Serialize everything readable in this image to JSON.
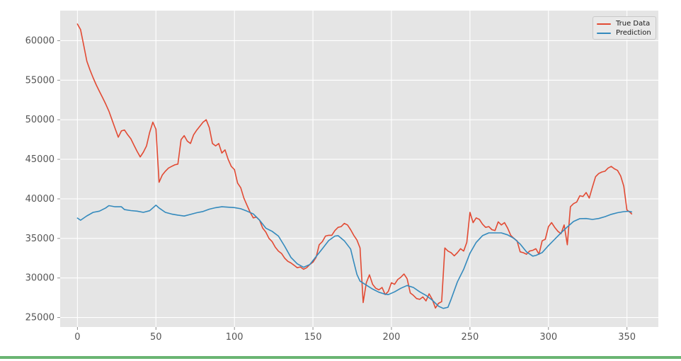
{
  "figure": {
    "background": "#ffffff",
    "plot_background": "#e5e5e5",
    "grid_color": "#ffffff",
    "tick_color": "#555555",
    "tick_mark_color": "#8f8f8f",
    "legend_background": "#e9e9e9",
    "legend_border": "#c9c9c9",
    "accent_bar_color": "#6ab572"
  },
  "chart_data": {
    "type": "line",
    "title": "",
    "xlabel": "",
    "ylabel": "",
    "grid": true,
    "legend_position": "upper right",
    "x_ticks": [
      0,
      50,
      100,
      150,
      200,
      250,
      300,
      350
    ],
    "y_ticks": [
      25000,
      30000,
      35000,
      40000,
      45000,
      50000,
      55000,
      60000
    ],
    "xlim": [
      -11,
      370
    ],
    "ylim": [
      23800,
      63800
    ],
    "series": [
      {
        "name": "True Data",
        "color": "#e24a33",
        "x": [
          0,
          2,
          4,
          6,
          8,
          10,
          12,
          14,
          16,
          18,
          20,
          22,
          24,
          26,
          28,
          30,
          32,
          34,
          36,
          38,
          40,
          42,
          44,
          46,
          48,
          50,
          52,
          54,
          56,
          58,
          60,
          62,
          64,
          66,
          68,
          70,
          72,
          74,
          76,
          78,
          80,
          82,
          84,
          86,
          88,
          90,
          92,
          94,
          96,
          98,
          100,
          102,
          104,
          106,
          108,
          110,
          112,
          114,
          116,
          118,
          120,
          122,
          124,
          126,
          128,
          130,
          132,
          134,
          136,
          138,
          140,
          142,
          144,
          146,
          148,
          150,
          152,
          154,
          156,
          158,
          160,
          162,
          164,
          166,
          168,
          170,
          172,
          174,
          176,
          178,
          180,
          182,
          184,
          186,
          188,
          190,
          192,
          194,
          196,
          198,
          200,
          202,
          204,
          206,
          208,
          210,
          212,
          214,
          216,
          218,
          220,
          222,
          224,
          226,
          228,
          230,
          232,
          234,
          236,
          238,
          240,
          242,
          244,
          246,
          248,
          250,
          252,
          254,
          256,
          258,
          260,
          262,
          264,
          266,
          268,
          270,
          272,
          274,
          276,
          278,
          280,
          282,
          284,
          286,
          288,
          290,
          292,
          294,
          296,
          298,
          300,
          302,
          304,
          306,
          308,
          310,
          312,
          314,
          316,
          318,
          320,
          322,
          324,
          326,
          328,
          330,
          332,
          334,
          336,
          338,
          340,
          342,
          344,
          346,
          348,
          350,
          352,
          353
        ],
        "y": [
          62100,
          61400,
          59400,
          57400,
          56300,
          55300,
          54400,
          53600,
          52800,
          52000,
          51100,
          50000,
          48900,
          47800,
          48600,
          48700,
          48100,
          47600,
          46800,
          46000,
          45300,
          45900,
          46700,
          48400,
          49700,
          48800,
          42100,
          43000,
          43500,
          43900,
          44100,
          44300,
          44400,
          47500,
          48000,
          47300,
          47000,
          48100,
          48700,
          49200,
          49700,
          50000,
          49000,
          47000,
          46700,
          47000,
          45800,
          46200,
          45000,
          44100,
          43700,
          42000,
          41400,
          40100,
          39200,
          38300,
          37600,
          37700,
          37300,
          36300,
          35800,
          35000,
          34600,
          33900,
          33400,
          33100,
          32500,
          32100,
          31900,
          31600,
          31300,
          31400,
          31100,
          31300,
          31700,
          32000,
          32600,
          34200,
          34600,
          35300,
          35400,
          35400,
          36000,
          36400,
          36500,
          36900,
          36700,
          36100,
          35400,
          34800,
          33800,
          26900,
          29400,
          30400,
          29200,
          28700,
          28500,
          28800,
          27900,
          28300,
          29400,
          29200,
          29800,
          30100,
          30500,
          29900,
          28100,
          27800,
          27400,
          27300,
          27600,
          27100,
          28000,
          27300,
          26200,
          26800,
          27000,
          33800,
          33400,
          33200,
          32800,
          33200,
          33700,
          33400,
          34500,
          38300,
          37000,
          37600,
          37400,
          36800,
          36400,
          36500,
          36100,
          36000,
          37100,
          36700,
          37000,
          36300,
          35400,
          35000,
          34700,
          33300,
          33200,
          33000,
          33400,
          33500,
          33700,
          33000,
          34700,
          34900,
          36500,
          37000,
          36400,
          35900,
          35600,
          36700,
          34200,
          39000,
          39400,
          39600,
          40400,
          40300,
          40800,
          40100,
          41500,
          42800,
          43200,
          43400,
          43500,
          43900,
          44100,
          43800,
          43600,
          42900,
          41600,
          38600,
          38300,
          38100
        ]
      },
      {
        "name": "Prediction",
        "color": "#348abd",
        "x": [
          0,
          2,
          6,
          10,
          14,
          18,
          20,
          24,
          28,
          30,
          34,
          38,
          42,
          46,
          50,
          52,
          56,
          60,
          64,
          68,
          72,
          76,
          80,
          84,
          88,
          92,
          96,
          100,
          104,
          108,
          112,
          116,
          120,
          124,
          128,
          132,
          136,
          140,
          144,
          148,
          152,
          156,
          160,
          164,
          166,
          170,
          174,
          176,
          178,
          180,
          184,
          188,
          192,
          196,
          198,
          202,
          206,
          210,
          214,
          218,
          222,
          226,
          230,
          233,
          236,
          238,
          242,
          246,
          250,
          254,
          258,
          262,
          266,
          270,
          274,
          278,
          282,
          286,
          290,
          292,
          296,
          300,
          304,
          308,
          312,
          316,
          320,
          324,
          328,
          332,
          336,
          340,
          344,
          348,
          351,
          353
        ],
        "y": [
          37570,
          37300,
          37850,
          38300,
          38450,
          38850,
          39150,
          39000,
          39000,
          38650,
          38520,
          38450,
          38300,
          38500,
          39200,
          38850,
          38300,
          38080,
          37950,
          37830,
          38040,
          38250,
          38400,
          38700,
          38890,
          39000,
          38950,
          38900,
          38750,
          38450,
          38100,
          37300,
          36300,
          35900,
          35300,
          34000,
          32600,
          31790,
          31350,
          31700,
          32700,
          33700,
          34730,
          35300,
          35350,
          34700,
          33660,
          32050,
          30450,
          29600,
          29100,
          28600,
          28200,
          27950,
          27900,
          28250,
          28700,
          29050,
          28800,
          28250,
          27800,
          27200,
          26430,
          26150,
          26300,
          27300,
          29500,
          31100,
          33130,
          34500,
          35350,
          35700,
          35700,
          35700,
          35450,
          35000,
          34290,
          33300,
          32770,
          32850,
          33210,
          34100,
          34900,
          35700,
          36450,
          37140,
          37500,
          37520,
          37400,
          37520,
          37750,
          38050,
          38250,
          38390,
          38430,
          38350
        ]
      }
    ]
  }
}
